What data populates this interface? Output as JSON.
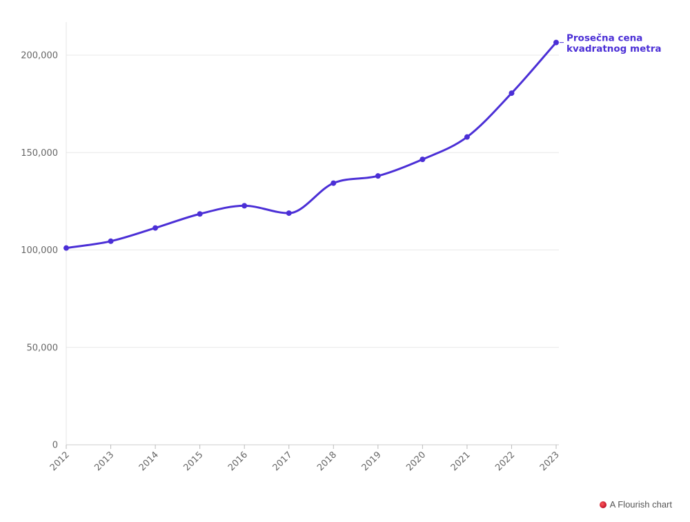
{
  "chart_data": {
    "type": "line",
    "x": [
      "2012",
      "2013",
      "2014",
      "2015",
      "2016",
      "2017",
      "2018",
      "2019",
      "2020",
      "2021",
      "2022",
      "2023"
    ],
    "series": [
      {
        "name": "Prosečna cena kvadratnog metra",
        "label_lines": [
          "Prosečna cena",
          "kvadratnog metra"
        ],
        "values": [
          101000,
          104500,
          111300,
          118500,
          122700,
          118900,
          134300,
          138000,
          146500,
          158000,
          180500,
          206500
        ],
        "color": "#4b2fd6"
      }
    ],
    "ylim": [
      0,
      218000
    ],
    "y_ticks": [
      0,
      50000,
      100000,
      150000,
      200000
    ],
    "y_tick_labels": [
      "0",
      "50,000",
      "100,000",
      "150,000",
      "200,000"
    ],
    "grid": true,
    "title": "",
    "xlabel": "",
    "ylabel": ""
  },
  "credit": {
    "text": "A Flourish chart"
  }
}
